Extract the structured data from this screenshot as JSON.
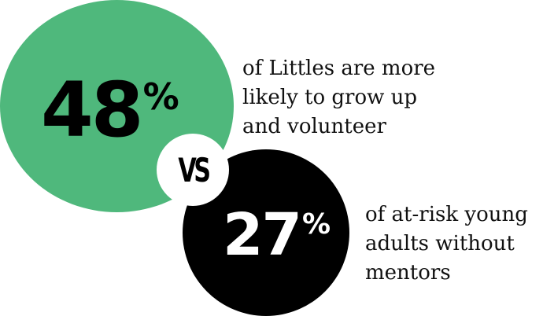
{
  "colors": {
    "green": "#4fb87c",
    "black": "#000000",
    "white": "#ffffff",
    "text": "#111111"
  },
  "stat_1": {
    "number": "48",
    "percent": "%",
    "caption": "of Littles are more\nlikely to grow up\nand volunteer"
  },
  "versus": "VS",
  "stat_2": {
    "number": "27",
    "percent": "%",
    "caption": "of at-risk young\nadults without\nmentors"
  }
}
